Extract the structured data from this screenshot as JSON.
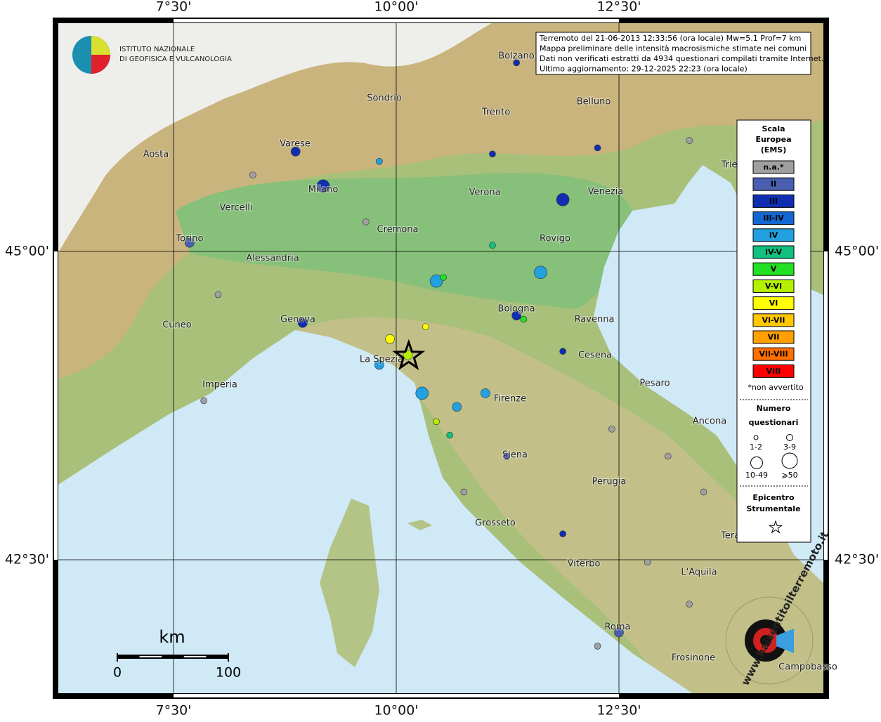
{
  "map": {
    "header": [
      "Terremoto del 21-06-2013 12:33:56 (ora locale) Mw=5.1 Prof=7 km",
      "Mappa preliminare delle intensità macrosismiche stimate nei comuni",
      "Dati non verificati estratti da 4934 questionari compilati tramite Internet.",
      "Ultimo aggiornamento: 29-12-2025 22:23 (ora locale)"
    ],
    "logo_ingv": [
      "ISTITUTO NAZIONALE",
      "DI GEOFISICA E VULCANOLOGIA"
    ],
    "logo_hst": "www.haisentitoilterremoto.it",
    "lon_ticks": [
      {
        "value": 7.5,
        "label": "7°30'"
      },
      {
        "value": 10,
        "label": "10°00'"
      },
      {
        "value": 12.5,
        "label": "12°30'"
      }
    ],
    "lat_ticks": [
      {
        "value": 45,
        "label": "45°00'"
      },
      {
        "value": 42.5,
        "label": "42°30'"
      }
    ],
    "cities": [
      "Bolzano",
      "Sondrio",
      "Trento",
      "Belluno",
      "Aosta",
      "Varese",
      "Milano",
      "Vercelli",
      "Verona",
      "Venezia",
      "Trieste",
      "Cremona",
      "Torino",
      "Rovigo",
      "Alessandria",
      "Bologna",
      "Ravenna",
      "Cuneo",
      "Genova",
      "Cesena",
      "La Spezia",
      "Imperia",
      "Pesaro",
      "Firenze",
      "Ancona",
      "Siena",
      "Perugia",
      "Grosseto",
      "Teramo",
      "Viterbo",
      "L'Aquila",
      "Roma",
      "Frosinone",
      "Campobasso"
    ],
    "legend": {
      "title": [
        "Scala",
        "Europea",
        "(EMS)"
      ],
      "classes": [
        {
          "name": "n.a.*",
          "color": "#a0a0a0"
        },
        {
          "name": "II",
          "color": "#4a5fb0"
        },
        {
          "name": "III",
          "color": "#0f2fb0"
        },
        {
          "name": "III-IV",
          "color": "#1466d2"
        },
        {
          "name": "IV",
          "color": "#22a0e0"
        },
        {
          "name": "IV-V",
          "color": "#12c080"
        },
        {
          "name": "V",
          "color": "#22e022"
        },
        {
          "name": "V-VI",
          "color": "#b4f000"
        },
        {
          "name": "VI",
          "color": "#ffff00"
        },
        {
          "name": "VI-VII",
          "color": "#ffc800"
        },
        {
          "name": "VII",
          "color": "#ffa000"
        },
        {
          "name": "VII-VIII",
          "color": "#ff7000"
        },
        {
          "name": "VIII",
          "color": "#ff0000"
        }
      ],
      "note": "*non avvertito",
      "size_title": [
        "Numero",
        "questionari"
      ],
      "sizes": [
        "1-2",
        "3-9",
        "10-49",
        "⩾50"
      ],
      "epicenter_title": [
        "Epicentro",
        "Strumentale"
      ]
    },
    "scale": {
      "unit": "km",
      "ticks": [
        0,
        100
      ]
    },
    "epicenter": [
      10.14,
      44.15
    ],
    "points": [
      [
        9.18,
        45.53,
        2,
        3
      ],
      [
        10.45,
        44.76,
        4,
        3
      ],
      [
        10.29,
        43.85,
        4,
        3
      ],
      [
        11.62,
        44.83,
        4,
        3
      ],
      [
        11.35,
        44.48,
        2,
        2
      ],
      [
        10.13,
        44.16,
        7,
        2
      ],
      [
        9.93,
        44.29,
        8,
        2
      ],
      [
        10.33,
        44.39,
        8,
        1
      ],
      [
        10.53,
        44.79,
        6,
        1
      ],
      [
        10.68,
        43.74,
        4,
        2
      ],
      [
        11.0,
        43.85,
        4,
        2
      ],
      [
        11.87,
        45.42,
        2,
        3
      ],
      [
        8.95,
        44.42,
        2,
        2
      ],
      [
        7.68,
        45.07,
        1,
        2
      ],
      [
        12.5,
        41.91,
        1,
        2
      ],
      [
        9.66,
        45.24,
        0,
        1
      ],
      [
        11.08,
        45.05,
        5,
        1
      ],
      [
        11.43,
        44.45,
        6,
        1
      ],
      [
        9.81,
        44.08,
        4,
        2
      ],
      [
        11.87,
        44.19,
        2,
        1
      ],
      [
        11.24,
        43.34,
        2,
        1
      ],
      [
        11.35,
        46.53,
        2,
        1
      ],
      [
        8.87,
        45.81,
        2,
        2
      ],
      [
        9.81,
        45.73,
        4,
        1
      ],
      [
        8.0,
        44.65,
        0,
        1
      ],
      [
        7.84,
        43.79,
        0,
        1
      ],
      [
        12.42,
        43.56,
        0,
        1
      ],
      [
        13.05,
        43.34,
        0,
        1
      ],
      [
        13.45,
        43.05,
        0,
        1
      ],
      [
        11.87,
        42.71,
        2,
        1
      ],
      [
        10.76,
        43.05,
        0,
        1
      ],
      [
        12.82,
        42.48,
        0,
        1
      ],
      [
        13.29,
        42.14,
        0,
        1
      ],
      [
        12.26,
        41.8,
        0,
        1
      ],
      [
        11.08,
        45.79,
        2,
        1
      ],
      [
        12.26,
        45.84,
        2,
        1
      ],
      [
        10.6,
        43.51,
        5,
        1
      ],
      [
        10.45,
        43.62,
        7,
        1
      ],
      [
        8.39,
        45.62,
        0,
        1
      ],
      [
        13.29,
        45.9,
        0,
        1
      ]
    ]
  }
}
